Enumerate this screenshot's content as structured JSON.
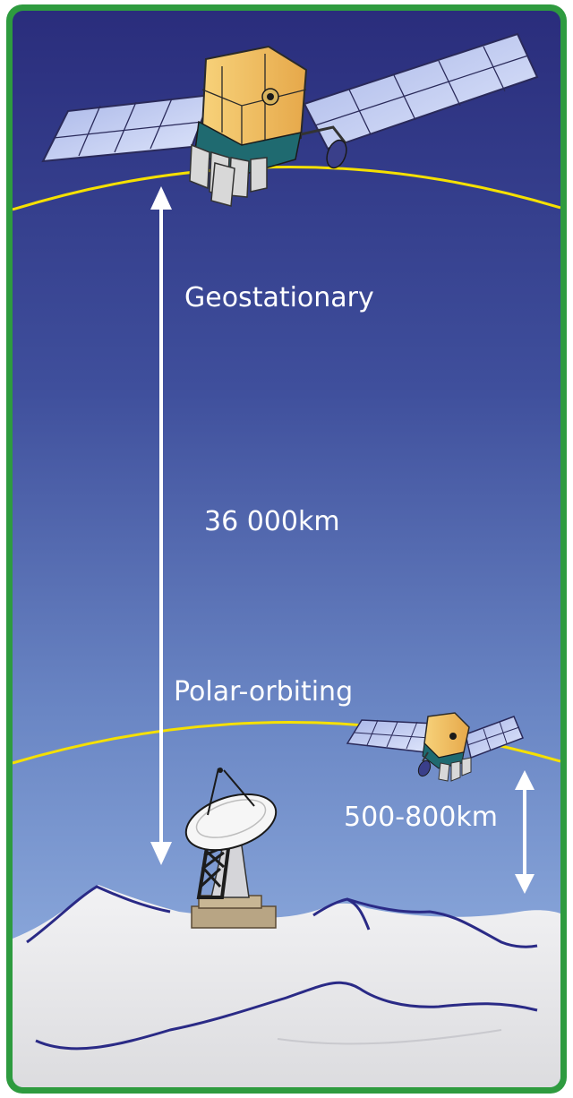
{
  "labels": {
    "geostationary": "Geostationary",
    "geo_distance": "36 000km",
    "polar": "Polar-orbiting",
    "polar_distance": "500-800km"
  },
  "colors": {
    "border": "#2e9b3f",
    "sky_top": "#2b2f7e",
    "sky_mid": "#5a6fb6",
    "sky_bottom": "#8fb0e0",
    "orbit": "#f5e000",
    "arrow": "#ffffff",
    "ground": "#e9e9eb",
    "ridge": "#2a2a86"
  },
  "icons": {
    "geo_satellite": "geostationary-satellite",
    "polar_satellite": "polar-orbiting-satellite",
    "ground_station": "satellite-dish"
  }
}
